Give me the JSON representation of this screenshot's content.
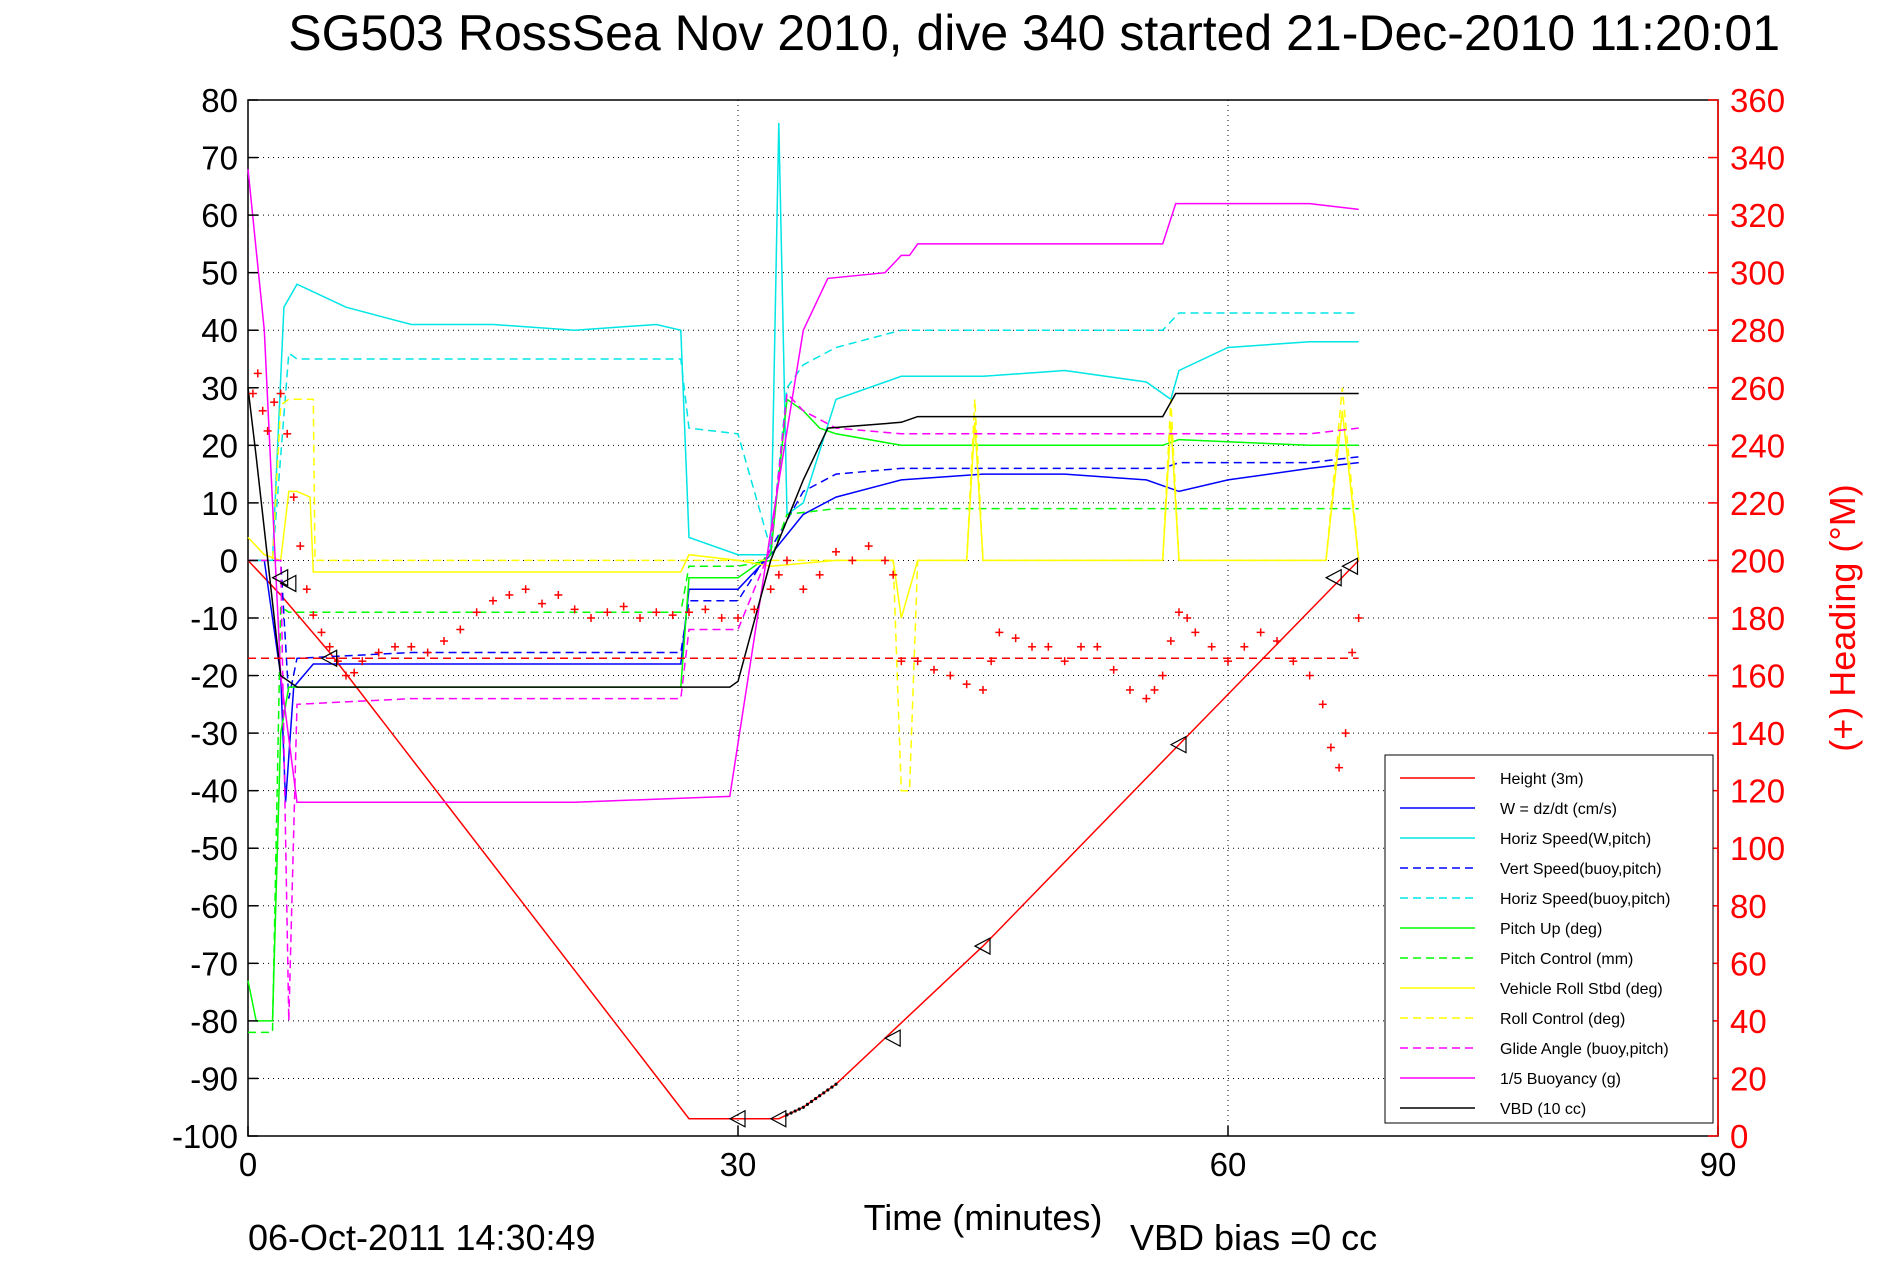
{
  "chart_data": {
    "type": "line",
    "title": "SG503 RossSea Nov 2010, dive 340 started 21-Dec-2010 11:20:01",
    "xlabel": "Time (minutes)",
    "ylabel": "",
    "y2label": "(+) Heading (°M)",
    "xlim": [
      0,
      90
    ],
    "ylim": [
      -100,
      80
    ],
    "y2lim": [
      0,
      360
    ],
    "xticks": [
      "0",
      "30",
      "60",
      "90"
    ],
    "yticks": [
      "80",
      "70",
      "60",
      "50",
      "40",
      "30",
      "20",
      "10",
      "0",
      "-10",
      "-20",
      "-30",
      "-40",
      "-50",
      "-60",
      "-70",
      "-80",
      "-90",
      "-100"
    ],
    "y2ticks": [
      "360",
      "340",
      "320",
      "300",
      "280",
      "260",
      "240",
      "220",
      "200",
      "180",
      "160",
      "140",
      "120",
      "100",
      "80",
      "60",
      "40",
      "20",
      "0"
    ],
    "grid": true,
    "legend_position": "bottom-right",
    "footer_left": "06-Oct-2011 14:30:49",
    "footer_right": "VBD bias =0 cc",
    "heading_target_deg": 166,
    "series": [
      {
        "name": "Height (3m)",
        "color": "#ff0000",
        "dash": false,
        "x": [
          0,
          2,
          5,
          27,
          30,
          32.5,
          34,
          36,
          45,
          57,
          68
        ],
        "y": [
          0,
          -6,
          -16,
          -97,
          -97,
          -97,
          -95,
          -91,
          -67,
          -32,
          0
        ]
      },
      {
        "name": "W = dz/dt (cm/s)",
        "color": "#0000ff",
        "dash": false,
        "x": [
          0,
          1,
          2,
          2.3,
          2.8,
          4,
          10,
          15,
          20,
          25,
          26.5,
          27,
          30,
          32,
          34,
          36,
          40,
          45,
          50,
          55,
          57,
          60,
          65,
          68
        ],
        "y": [
          0,
          0,
          -20,
          -42,
          -22,
          -18,
          -18,
          -18,
          -18,
          -18,
          -18,
          -5,
          -5,
          1,
          8,
          11,
          14,
          15,
          15,
          14,
          12,
          14,
          16,
          17
        ]
      },
      {
        "name": "Horiz Speed(W,pitch)",
        "color": "#00e5e5",
        "dash": false,
        "x": [
          0,
          1.5,
          2.2,
          3,
          6,
          10,
          15,
          20,
          25,
          26.5,
          27,
          30,
          32,
          32.5,
          33,
          34,
          36,
          40,
          45,
          50,
          55,
          56.5,
          57,
          60,
          65,
          68
        ],
        "y": [
          0,
          0,
          44,
          48,
          44,
          41,
          41,
          40,
          41,
          40,
          4,
          1,
          1,
          76,
          8,
          10,
          28,
          32,
          32,
          33,
          31,
          28,
          33,
          37,
          38,
          38
        ]
      },
      {
        "name": "Vert Speed(buoy,pitch)",
        "color": "#0000ff",
        "dash": true,
        "x": [
          0,
          2,
          2.5,
          3,
          10,
          20,
          26.5,
          27,
          30,
          32,
          34,
          36,
          40,
          50,
          56,
          57,
          65,
          68
        ],
        "y": [
          0,
          0,
          -24,
          -17,
          -16,
          -16,
          -16,
          -7,
          -7,
          2,
          12,
          15,
          16,
          16,
          16,
          17,
          17,
          18
        ]
      },
      {
        "name": "Horiz Speed(buoy,pitch)",
        "color": "#00e5e5",
        "dash": true,
        "x": [
          0,
          1.5,
          2.5,
          3,
          10,
          20,
          26.5,
          27,
          30,
          32,
          33,
          34,
          36,
          40,
          50,
          56,
          57,
          65,
          68
        ],
        "y": [
          0,
          0,
          36,
          35,
          35,
          35,
          35,
          23,
          22,
          2,
          30,
          34,
          37,
          40,
          40,
          40,
          43,
          43,
          43
        ]
      },
      {
        "name": "Pitch Up (deg)",
        "color": "#00ff00",
        "dash": false,
        "x": [
          0,
          0.5,
          1.5,
          2,
          2.5,
          3,
          10,
          20,
          26.5,
          27,
          30,
          32,
          33,
          34,
          35,
          36,
          40,
          50,
          56,
          57,
          65,
          68
        ],
        "y": [
          -73,
          -80,
          -80,
          -30,
          -22,
          -22,
          -22,
          -22,
          -22,
          -3,
          -3,
          1,
          28,
          26,
          23,
          22,
          20,
          20,
          20,
          21,
          20,
          20
        ]
      },
      {
        "name": "Pitch Control (mm)",
        "color": "#00ff00",
        "dash": true,
        "x": [
          0,
          1.5,
          2,
          2.5,
          3,
          26.5,
          27,
          30,
          32,
          33,
          36,
          68
        ],
        "y": [
          -82,
          -82,
          -8,
          -9,
          -9,
          -9,
          -1,
          -1,
          0,
          8,
          9,
          9
        ]
      },
      {
        "name": "Vehicle Roll Stbd (deg)",
        "color": "#ffff00",
        "dash": false,
        "x": [
          0,
          1,
          2,
          2.5,
          3,
          3.8,
          4,
          10,
          20,
          26.5,
          27,
          30,
          32,
          36,
          39.5,
          40,
          41,
          44,
          44.5,
          45,
          56,
          56.5,
          57,
          66,
          67,
          68
        ],
        "y": [
          4,
          1,
          0,
          12,
          12,
          11,
          -2,
          -2,
          -2,
          -2,
          1,
          0,
          -1,
          0,
          0,
          -10,
          0,
          0,
          24,
          0,
          0,
          24,
          0,
          0,
          26,
          0
        ]
      },
      {
        "name": "Roll Control (deg)",
        "color": "#ffff00",
        "dash": true,
        "x": [
          0,
          1.5,
          2,
          2.5,
          4,
          4.1,
          30,
          39.5,
          40,
          40.5,
          41,
          44,
          44.5,
          45,
          56,
          56.5,
          57,
          66,
          67,
          68
        ],
        "y": [
          0,
          0,
          27,
          28,
          28,
          0,
          0,
          0,
          -40,
          -40,
          0,
          0,
          28,
          0,
          0,
          28,
          0,
          0,
          30,
          0
        ]
      },
      {
        "name": "Glide Angle (buoy,pitch)",
        "color": "#ff00ff",
        "dash": true,
        "x": [
          0,
          2,
          2.5,
          3,
          10,
          20,
          26.5,
          27,
          30,
          32,
          33,
          34,
          36,
          40,
          50,
          56,
          57,
          65,
          68
        ],
        "y": [
          0,
          0,
          -80,
          -25,
          -24,
          -24,
          -24,
          -12,
          -12,
          2,
          29,
          26,
          23,
          22,
          22,
          22,
          22,
          22,
          23
        ]
      },
      {
        "name": "1/5 Buoyancy (g)",
        "color": "#ff00ff",
        "dash": false,
        "x": [
          0,
          1,
          2,
          3,
          10,
          20,
          29.5,
          32,
          34,
          35.5,
          39,
          40,
          40.5,
          41,
          42,
          50,
          56,
          56.8,
          60,
          65,
          68
        ],
        "y": [
          68,
          40,
          -20,
          -42,
          -42,
          -42,
          -41,
          5,
          40,
          49,
          50,
          53,
          53,
          55,
          55,
          55,
          55,
          62,
          62,
          62,
          61
        ]
      },
      {
        "name": "VBD (10 cc)",
        "color": "#000000",
        "dash": false,
        "x": [
          0,
          0.5,
          2,
          3,
          10,
          20,
          29.5,
          30,
          32,
          34,
          35.5,
          40,
          41,
          50,
          56,
          56.8,
          60,
          65,
          68
        ],
        "y": [
          30,
          18,
          -20,
          -22,
          -22,
          -22,
          -22,
          -21,
          0,
          14,
          23,
          24,
          25,
          25,
          25,
          29,
          29,
          29,
          29
        ]
      }
    ],
    "heading_points_deg": {
      "x": [
        0.3,
        0.6,
        0.9,
        1.2,
        1.6,
        2,
        2.4,
        2.8,
        3.2,
        3.6,
        4,
        4.5,
        5,
        5.5,
        6,
        6.5,
        7,
        8,
        9,
        10,
        11,
        12,
        13,
        14,
        15,
        16,
        17,
        18,
        19,
        20,
        21,
        22,
        23,
        24,
        25,
        26,
        27,
        28,
        29,
        30,
        31,
        32,
        32.5,
        33,
        34,
        35,
        36,
        37,
        38,
        39,
        39.5,
        40,
        41,
        42,
        43,
        44,
        45,
        45.5,
        46,
        47,
        48,
        49,
        50,
        51,
        52,
        53,
        54,
        55,
        55.5,
        56,
        56.5,
        57,
        57.5,
        58,
        59,
        60,
        61,
        62,
        63,
        64,
        65,
        65.8,
        66.3,
        66.8,
        67.2,
        67.6,
        68
      ],
      "y": [
        258,
        265,
        252,
        245,
        255,
        258,
        244,
        222,
        205,
        190,
        181,
        175,
        170,
        165,
        160,
        161,
        165,
        168,
        170,
        170,
        168,
        172,
        176,
        182,
        186,
        188,
        190,
        185,
        188,
        183,
        180,
        182,
        184,
        180,
        182,
        181,
        182,
        183,
        180,
        180,
        183,
        190,
        195,
        200,
        190,
        195,
        203,
        200,
        205,
        200,
        195,
        165,
        165,
        162,
        160,
        157,
        155,
        165,
        175,
        173,
        170,
        170,
        165,
        170,
        170,
        162,
        155,
        152,
        155,
        160,
        172,
        182,
        180,
        175,
        170,
        165,
        170,
        175,
        172,
        165,
        160,
        150,
        135,
        128,
        140,
        168,
        180
      ]
    },
    "markers": {
      "triangles": [
        [
          2,
          -3
        ],
        [
          2.5,
          -4
        ],
        [
          5,
          -17
        ],
        [
          30,
          -97
        ],
        [
          32.5,
          -97
        ],
        [
          39.5,
          -83
        ],
        [
          45,
          -67
        ],
        [
          57,
          -32
        ],
        [
          66.5,
          -3
        ],
        [
          67.5,
          -1
        ]
      ],
      "dots_start_min": 33,
      "dots_end_min": 36
    }
  }
}
